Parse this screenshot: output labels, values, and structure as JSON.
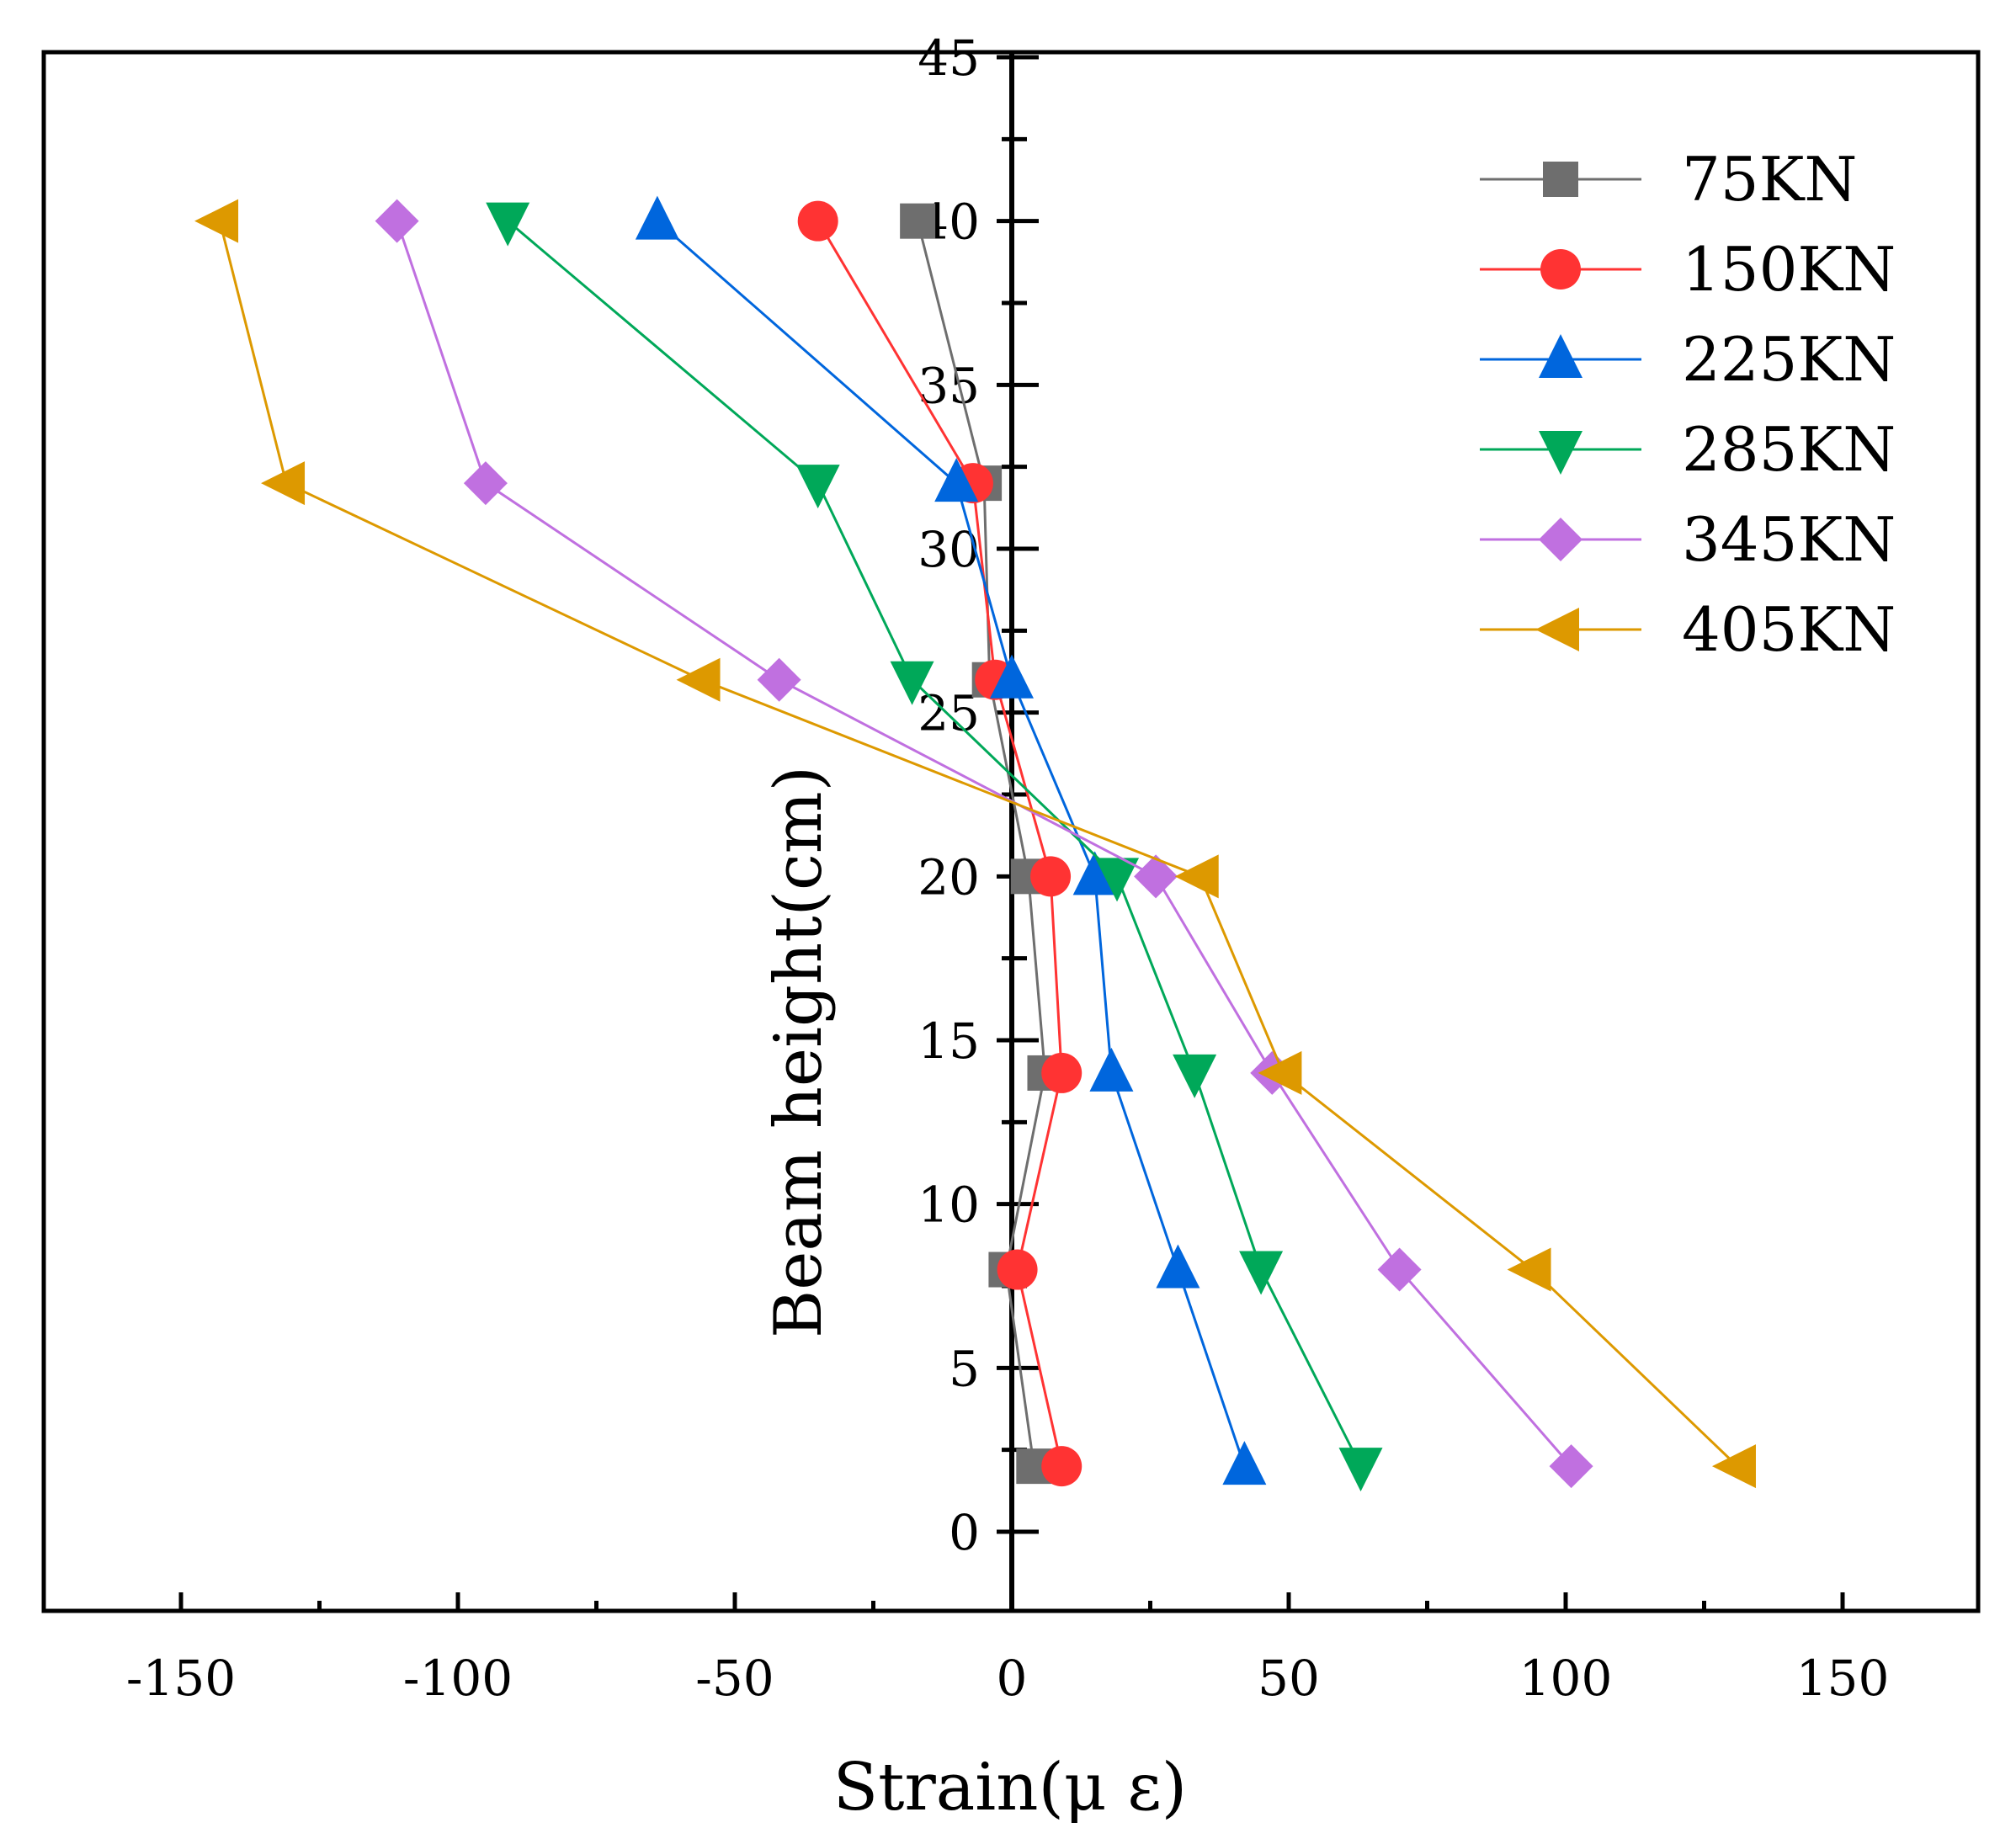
{
  "chart_data": {
    "type": "line",
    "title": "",
    "xlabel": "Strain(μ ε)",
    "ylabel": "Beam height(cm)",
    "xlim": [
      -175,
      175
    ],
    "ylim": [
      -2.5,
      45
    ],
    "xticks": [
      -150,
      -100,
      -50,
      0,
      50,
      100,
      150
    ],
    "yticks": [
      0,
      5,
      10,
      15,
      20,
      25,
      30,
      35,
      40,
      45
    ],
    "grid": false,
    "legend_position": "top-right",
    "heights": [
      40,
      32,
      26,
      20,
      14,
      8,
      2
    ],
    "series": [
      {
        "name": "75KN",
        "color": "#6e6e6e",
        "marker": "square",
        "strain": [
          -17,
          -5,
          -4,
          3,
          6,
          -1,
          4
        ]
      },
      {
        "name": "150KN",
        "color": "#ff3333",
        "marker": "circle",
        "strain": [
          -35,
          -7,
          -3,
          7,
          9,
          1,
          9
        ]
      },
      {
        "name": "225KN",
        "color": "#0066dd",
        "marker": "triangle-up",
        "strain": [
          -64,
          -10,
          0,
          15,
          18,
          30,
          42
        ]
      },
      {
        "name": "285KN",
        "color": "#00a859",
        "marker": "triangle-down",
        "strain": [
          -91,
          -35,
          -18,
          19,
          33,
          45,
          63
        ]
      },
      {
        "name": "345KN",
        "color": "#c070e0",
        "marker": "diamond",
        "strain": [
          -111,
          -95,
          -42,
          26,
          47,
          70,
          101
        ]
      },
      {
        "name": "405KN",
        "color": "#dd9900",
        "marker": "triangle-left",
        "strain": [
          -143,
          -131,
          -56,
          34,
          49,
          94,
          131
        ]
      }
    ]
  }
}
